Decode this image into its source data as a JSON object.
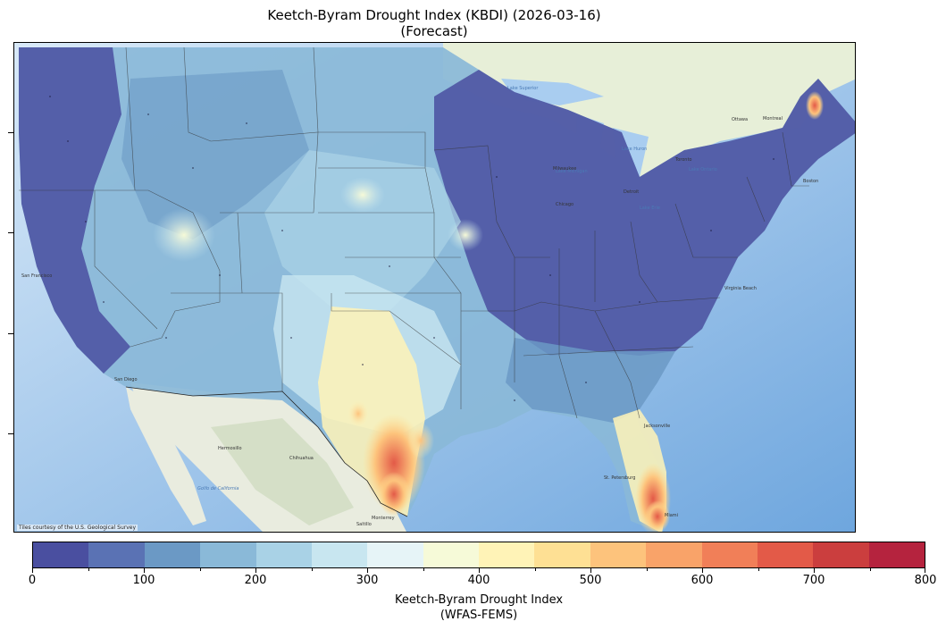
{
  "title": {
    "line1": "Keetch-Byram Drought Index (KBDI) (2026-03-16)",
    "line2": "(Forecast)"
  },
  "map": {
    "attribution": "Tiles courtesy of the U.S. Geological Survey",
    "basemap_labels": {
      "hermosillo": "Hermosillo",
      "chihuahua": "Chihuahua",
      "monterrey": "Monterrey",
      "saltillo": "Saltillo",
      "gulf": "Golfo de California",
      "lake_superior": "Lake Superior",
      "lake_huron": "Lake Huron",
      "lake_michigan": "Lake Michigan",
      "lake_erie": "Lake Erie",
      "lake_ontario": "Lake Ontario",
      "ottawa": "Ottawa",
      "montreal": "Montreal",
      "toronto": "Toronto",
      "milwaukee": "Milwaukee",
      "chicago": "Chicago",
      "detroit": "Detroit",
      "boston": "Boston",
      "virginia_beach": "Virginia Beach",
      "jacksonville": "Jacksonville",
      "st_petersburg": "St. Petersburg",
      "miami": "Miami",
      "san_francisco": "San Francisco",
      "san_diego": "San Diego"
    }
  },
  "colorbar": {
    "title_line1": "Keetch-Byram Drought Index",
    "title_line2": "(WFAS-FEMS)",
    "min": 0,
    "max": 800,
    "step": 50,
    "colors": [
      "#4a4fa0",
      "#5a72b4",
      "#6b99c5",
      "#8ab9d8",
      "#a9d2e6",
      "#c8e6f0",
      "#e6f4f7",
      "#f6fad8",
      "#fff3b7",
      "#fee094",
      "#fdc37c",
      "#f9a369",
      "#f17f58",
      "#e35a48",
      "#cb3e3e",
      "#b5233e"
    ],
    "tick_labels": [
      "0",
      "100",
      "200",
      "300",
      "400",
      "500",
      "600",
      "700",
      "800"
    ]
  },
  "legend_hint": "KBDI scale 0-800"
}
